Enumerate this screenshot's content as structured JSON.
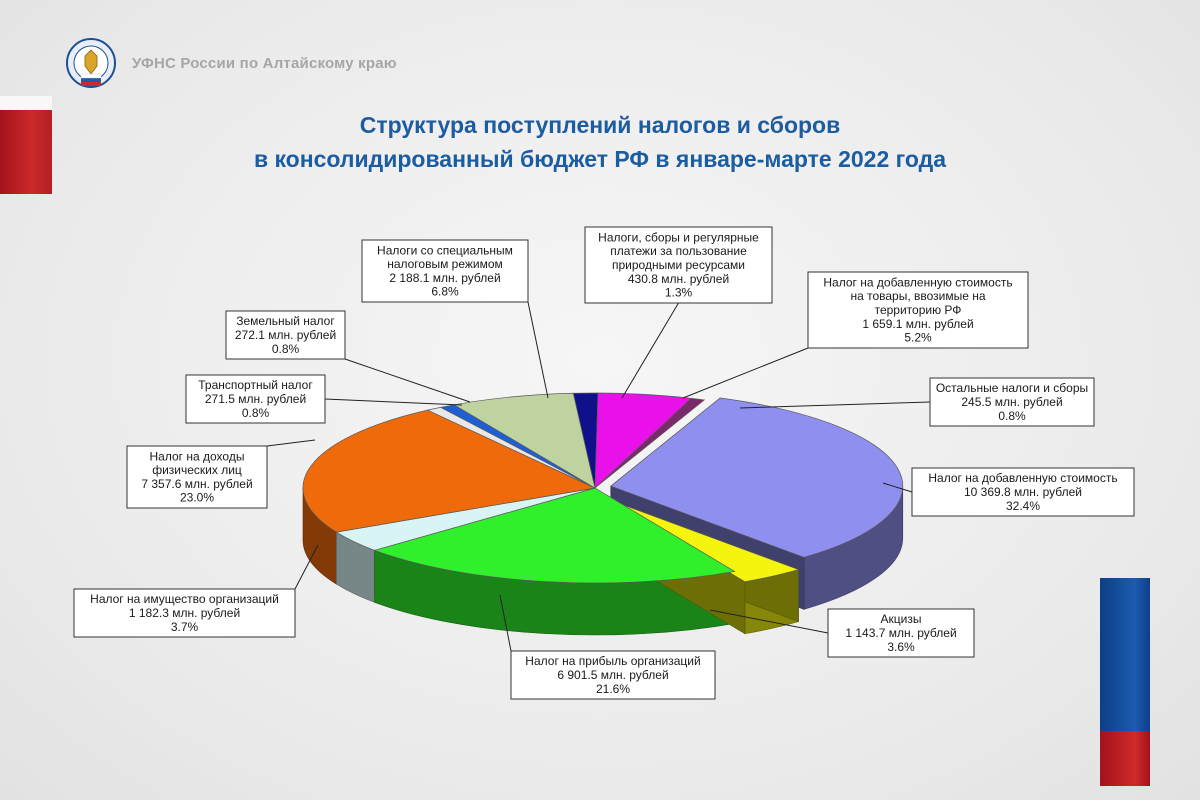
{
  "header": {
    "org_name": "УФНС России по Алтайскому краю",
    "title_line1": "Структура поступлений налогов и сборов",
    "title_line2": "в консолидированный бюджет РФ в январе-марте 2022 года"
  },
  "colors": {
    "title": "#1c5ca0",
    "brand_red": "#c92a2a",
    "brand_blue": "#1c5bb0"
  },
  "chart_data": {
    "type": "pie",
    "title": "Структура поступлений налогов и сборов в консолидированный бюджет РФ в январе-марте 2022 года",
    "units": "млн. рублей",
    "slices": [
      {
        "name": "Налог на добавленную стоимость",
        "value_text": "10 369.8 млн. рублей",
        "value": 10369.8,
        "percent_text": "32.4%",
        "percent": 32.4,
        "color": "#8f8ff0"
      },
      {
        "name": "Акцизы",
        "value_text": "1 143.7 млн. рублей",
        "value": 1143.7,
        "percent_text": "3.6%",
        "percent": 3.6,
        "color": "#f4f40e"
      },
      {
        "name": "Налог на прибыль организаций",
        "value_text": "6 901.5 млн. рублей",
        "value": 6901.5,
        "percent_text": "21.6%",
        "percent": 21.6,
        "color": "#2ff02b"
      },
      {
        "name": "Налог на имущество организаций",
        "value_text": "1 182.3 млн. рублей",
        "value": 1182.3,
        "percent_text": "3.7%",
        "percent": 3.7,
        "color": "#d8f4f4"
      },
      {
        "name": "Налог на доходы физических лиц",
        "value_text": "7 357.6 млн. рублей",
        "value": 7357.6,
        "percent_text": "23.0%",
        "percent": 23.0,
        "color": "#ee6a0a"
      },
      {
        "name": "Транспортный налог",
        "value_text": "271.5 млн. рублей",
        "value": 271.5,
        "percent_text": "0.8%",
        "percent": 0.8,
        "color": "#e8e8e8"
      },
      {
        "name": "Земельный налог",
        "value_text": "272.1 млн. рублей",
        "value": 272.1,
        "percent_text": "0.8%",
        "percent": 0.8,
        "color": "#1e5fd6"
      },
      {
        "name": "Налоги со специальным налоговым режимом",
        "value_text": "2 188.1 млн. рублей",
        "value": 2188.1,
        "percent_text": "6.8%",
        "percent": 6.8,
        "color": "#bfd3a0"
      },
      {
        "name": "Налоги, сборы и регулярные платежи за пользование природными ресурсами",
        "value_text": "430.8 млн. рублей",
        "value": 430.8,
        "percent_text": "1.3%",
        "percent": 1.3,
        "color": "#10108a"
      },
      {
        "name": "Налог на добавленную стоимость на товары, ввозимые на территорию РФ",
        "value_text": "1 659.1 млн. рублей",
        "value": 1659.1,
        "percent_text": "5.2%",
        "percent": 5.2,
        "color": "#ea10ea"
      },
      {
        "name": "Остальные налоги и сборы",
        "value_text": "245.5 млн. рублей",
        "value": 245.5,
        "percent_text": "0.8%",
        "percent": 0.8,
        "color": "#7a2a6a"
      }
    ],
    "callouts": [
      {
        "lines": [
          "Налог на добавленную стоимость",
          "10 369.8 млн. рублей",
          "32.4%"
        ]
      },
      {
        "lines": [
          "Акцизы",
          "1 143.7 млн. рублей",
          "3.6%"
        ]
      },
      {
        "lines": [
          "Налог на прибыль организаций",
          "6 901.5 млн. рублей",
          "21.6%"
        ]
      },
      {
        "lines": [
          "Налог на имущество организаций",
          "1 182.3 млн. рублей",
          "3.7%"
        ]
      },
      {
        "lines": [
          "Налог на доходы",
          "физических лиц",
          "7 357.6 млн. рублей",
          "23.0%"
        ]
      },
      {
        "lines": [
          "Транспортный налог",
          "271.5 млн. рублей",
          "0.8%"
        ]
      },
      {
        "lines": [
          "Земельный налог",
          "272.1 млн. рублей",
          "0.8%"
        ]
      },
      {
        "lines": [
          "Налоги со специальным",
          "налоговым режимом",
          "2 188.1 млн. рублей",
          "6.8%"
        ]
      },
      {
        "lines": [
          "Налоги, сборы и регулярные",
          "платежи за пользование",
          "природными ресурсами",
          "430.8 млн. рублей",
          "1.3%"
        ]
      },
      {
        "lines": [
          "Налог на добавленную стоимость",
          "на товары, ввозимые на",
          "территорию РФ",
          "1 659.1 млн. рублей",
          "5.2%"
        ]
      },
      {
        "lines": [
          "Остальные налоги и сборы",
          "245.5 млн. рублей",
          "0.8%"
        ]
      }
    ]
  }
}
